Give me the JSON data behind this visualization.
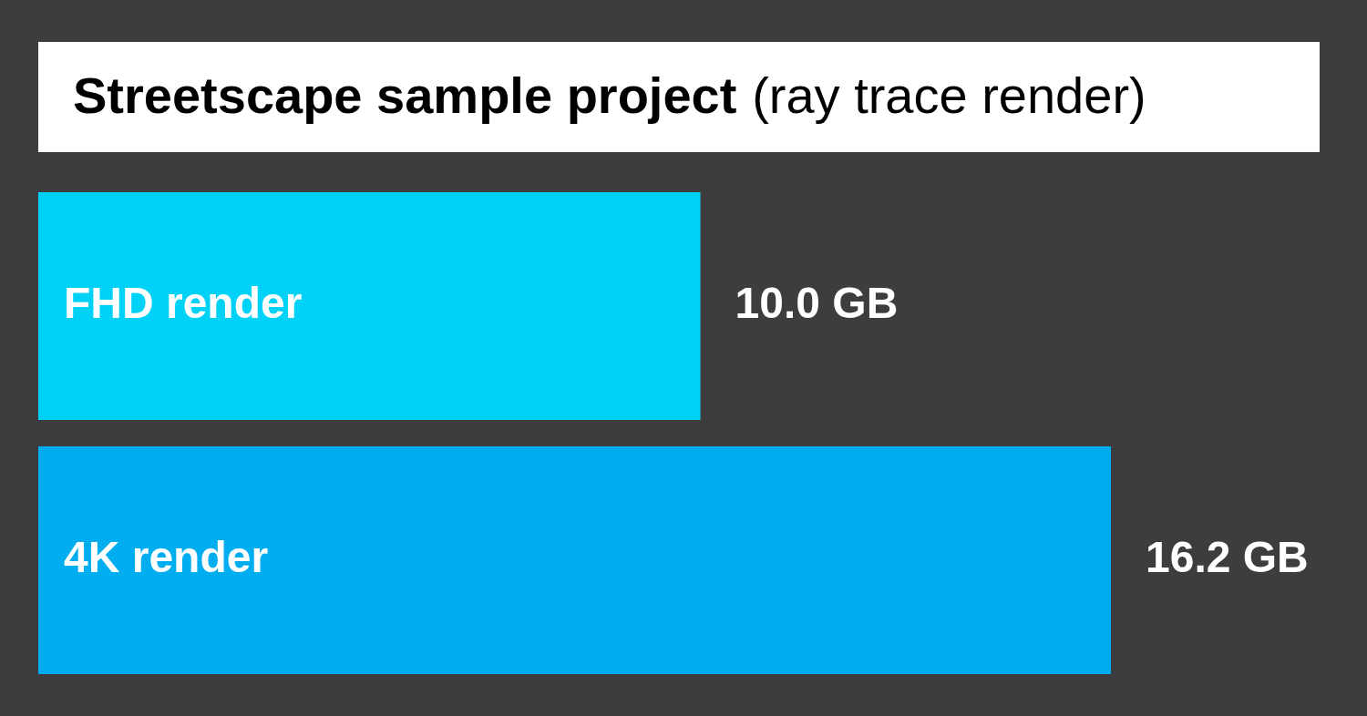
{
  "chart_data": {
    "type": "bar",
    "orientation": "horizontal",
    "title": "Streetscape sample project",
    "subtitle": "(ray trace render)",
    "categories": [
      "FHD render",
      "4K render"
    ],
    "values": [
      10.0,
      16.2
    ],
    "colors": [
      "#00d1f7",
      "#00aeef"
    ],
    "value_labels": [
      "10.0 GB",
      "16.2 GB"
    ]
  }
}
